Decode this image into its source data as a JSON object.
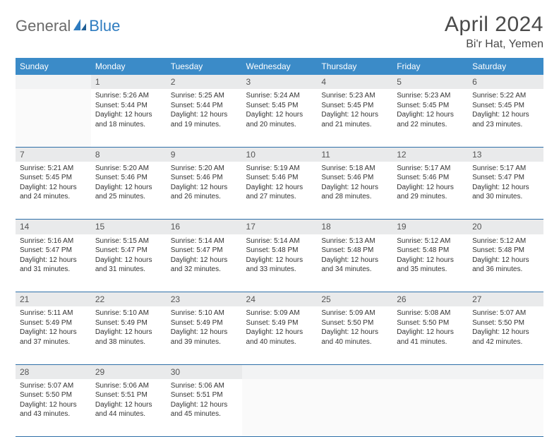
{
  "brand": {
    "part1": "General",
    "part2": "Blue"
  },
  "title": "April 2024",
  "location": "Bi'r Hat, Yemen",
  "headers": [
    "Sunday",
    "Monday",
    "Tuesday",
    "Wednesday",
    "Thursday",
    "Friday",
    "Saturday"
  ],
  "colors": {
    "header_bg": "#3b8bc8",
    "row_divider": "#2e6fa8",
    "daynum_bg": "#e9eaeb",
    "logo_gray": "#6a6a6a",
    "logo_blue": "#2e7cc0"
  },
  "weeks": [
    [
      null,
      {
        "n": "1",
        "sr": "5:26 AM",
        "ss": "5:44 PM",
        "d1": "12 hours",
        "d2": "and 18 minutes."
      },
      {
        "n": "2",
        "sr": "5:25 AM",
        "ss": "5:44 PM",
        "d1": "12 hours",
        "d2": "and 19 minutes."
      },
      {
        "n": "3",
        "sr": "5:24 AM",
        "ss": "5:45 PM",
        "d1": "12 hours",
        "d2": "and 20 minutes."
      },
      {
        "n": "4",
        "sr": "5:23 AM",
        "ss": "5:45 PM",
        "d1": "12 hours",
        "d2": "and 21 minutes."
      },
      {
        "n": "5",
        "sr": "5:23 AM",
        "ss": "5:45 PM",
        "d1": "12 hours",
        "d2": "and 22 minutes."
      },
      {
        "n": "6",
        "sr": "5:22 AM",
        "ss": "5:45 PM",
        "d1": "12 hours",
        "d2": "and 23 minutes."
      }
    ],
    [
      {
        "n": "7",
        "sr": "5:21 AM",
        "ss": "5:45 PM",
        "d1": "12 hours",
        "d2": "and 24 minutes."
      },
      {
        "n": "8",
        "sr": "5:20 AM",
        "ss": "5:46 PM",
        "d1": "12 hours",
        "d2": "and 25 minutes."
      },
      {
        "n": "9",
        "sr": "5:20 AM",
        "ss": "5:46 PM",
        "d1": "12 hours",
        "d2": "and 26 minutes."
      },
      {
        "n": "10",
        "sr": "5:19 AM",
        "ss": "5:46 PM",
        "d1": "12 hours",
        "d2": "and 27 minutes."
      },
      {
        "n": "11",
        "sr": "5:18 AM",
        "ss": "5:46 PM",
        "d1": "12 hours",
        "d2": "and 28 minutes."
      },
      {
        "n": "12",
        "sr": "5:17 AM",
        "ss": "5:46 PM",
        "d1": "12 hours",
        "d2": "and 29 minutes."
      },
      {
        "n": "13",
        "sr": "5:17 AM",
        "ss": "5:47 PM",
        "d1": "12 hours",
        "d2": "and 30 minutes."
      }
    ],
    [
      {
        "n": "14",
        "sr": "5:16 AM",
        "ss": "5:47 PM",
        "d1": "12 hours",
        "d2": "and 31 minutes."
      },
      {
        "n": "15",
        "sr": "5:15 AM",
        "ss": "5:47 PM",
        "d1": "12 hours",
        "d2": "and 31 minutes."
      },
      {
        "n": "16",
        "sr": "5:14 AM",
        "ss": "5:47 PM",
        "d1": "12 hours",
        "d2": "and 32 minutes."
      },
      {
        "n": "17",
        "sr": "5:14 AM",
        "ss": "5:48 PM",
        "d1": "12 hours",
        "d2": "and 33 minutes."
      },
      {
        "n": "18",
        "sr": "5:13 AM",
        "ss": "5:48 PM",
        "d1": "12 hours",
        "d2": "and 34 minutes."
      },
      {
        "n": "19",
        "sr": "5:12 AM",
        "ss": "5:48 PM",
        "d1": "12 hours",
        "d2": "and 35 minutes."
      },
      {
        "n": "20",
        "sr": "5:12 AM",
        "ss": "5:48 PM",
        "d1": "12 hours",
        "d2": "and 36 minutes."
      }
    ],
    [
      {
        "n": "21",
        "sr": "5:11 AM",
        "ss": "5:49 PM",
        "d1": "12 hours",
        "d2": "and 37 minutes."
      },
      {
        "n": "22",
        "sr": "5:10 AM",
        "ss": "5:49 PM",
        "d1": "12 hours",
        "d2": "and 38 minutes."
      },
      {
        "n": "23",
        "sr": "5:10 AM",
        "ss": "5:49 PM",
        "d1": "12 hours",
        "d2": "and 39 minutes."
      },
      {
        "n": "24",
        "sr": "5:09 AM",
        "ss": "5:49 PM",
        "d1": "12 hours",
        "d2": "and 40 minutes."
      },
      {
        "n": "25",
        "sr": "5:09 AM",
        "ss": "5:50 PM",
        "d1": "12 hours",
        "d2": "and 40 minutes."
      },
      {
        "n": "26",
        "sr": "5:08 AM",
        "ss": "5:50 PM",
        "d1": "12 hours",
        "d2": "and 41 minutes."
      },
      {
        "n": "27",
        "sr": "5:07 AM",
        "ss": "5:50 PM",
        "d1": "12 hours",
        "d2": "and 42 minutes."
      }
    ],
    [
      {
        "n": "28",
        "sr": "5:07 AM",
        "ss": "5:50 PM",
        "d1": "12 hours",
        "d2": "and 43 minutes."
      },
      {
        "n": "29",
        "sr": "5:06 AM",
        "ss": "5:51 PM",
        "d1": "12 hours",
        "d2": "and 44 minutes."
      },
      {
        "n": "30",
        "sr": "5:06 AM",
        "ss": "5:51 PM",
        "d1": "12 hours",
        "d2": "and 45 minutes."
      },
      null,
      null,
      null,
      null
    ]
  ],
  "labels": {
    "sunrise": "Sunrise:",
    "sunset": "Sunset:",
    "daylight": "Daylight:"
  }
}
